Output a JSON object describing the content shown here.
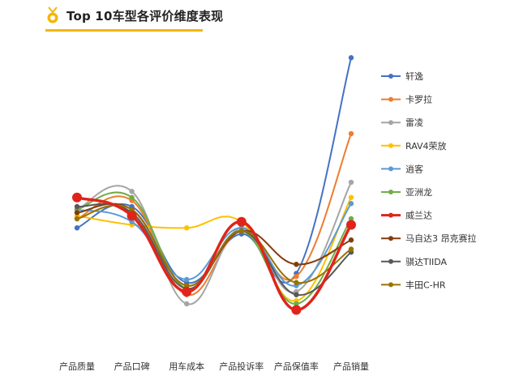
{
  "header": {
    "title": "Top 10车型各评价维度表现",
    "icon": "medal-icon",
    "accent": "#f2b705"
  },
  "chart_data": {
    "type": "line",
    "smooth": true,
    "title": "Top 10车型各评价维度表现",
    "categories": [
      "产品质量",
      "产品口碑",
      "用车成本",
      "产品投诉率",
      "产品保值率",
      "产品销量"
    ],
    "ylim": [
      0,
      100
    ],
    "grid": false,
    "legend_position": "right",
    "series": [
      {
        "name": "轩逸",
        "color": "#4472c4",
        "values": [
          41,
          48,
          23,
          39,
          26,
          97
        ],
        "width": 2
      },
      {
        "name": "卡罗拉",
        "color": "#ed7d31",
        "values": [
          44,
          50,
          19,
          40,
          25,
          72
        ],
        "width": 2
      },
      {
        "name": "雷凌",
        "color": "#a5a5a5",
        "values": [
          47,
          53,
          16,
          41,
          20,
          56
        ],
        "width": 2
      },
      {
        "name": "RAV4荣放",
        "color": "#ffc000",
        "values": [
          45,
          42,
          41,
          43,
          17,
          51
        ],
        "width": 2
      },
      {
        "name": "逍客",
        "color": "#5b9bd5",
        "values": [
          47,
          43,
          24,
          41,
          22,
          49
        ],
        "width": 2
      },
      {
        "name": "亚洲龙",
        "color": "#70ad47",
        "values": [
          47,
          51,
          21,
          40,
          16,
          44
        ],
        "width": 2
      },
      {
        "name": "威兰达",
        "color": "#e0241b",
        "values": [
          51,
          45,
          20,
          43,
          14,
          42
        ],
        "width": 3.5
      },
      {
        "name": "马自达3 昂克赛拉",
        "color": "#843c0c",
        "values": [
          46,
          47,
          22,
          40,
          29,
          37
        ],
        "width": 2
      },
      {
        "name": "骐达TIIDA",
        "color": "#595959",
        "values": [
          48,
          46,
          21,
          40,
          19,
          33
        ],
        "width": 2
      },
      {
        "name": "丰田C-HR",
        "color": "#997300",
        "values": [
          44,
          47,
          22,
          40,
          23,
          34
        ],
        "width": 2
      }
    ]
  }
}
